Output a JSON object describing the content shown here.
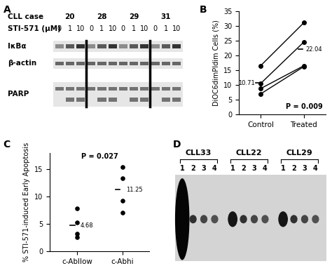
{
  "chart_data": [
    {
      "panel": "A",
      "type": "blot",
      "header": "CLL case",
      "dose_label": "STI-571 (µM)",
      "cases": [
        "20",
        "28",
        "29",
        "31"
      ],
      "doses": [
        "0",
        "1",
        "10"
      ],
      "rows": [
        "IκBα",
        "β-actin",
        "PARP"
      ]
    },
    {
      "panel": "B",
      "type": "line",
      "ylabel": "DiOC6dimPIdim Cells (%)",
      "categories": [
        "Control",
        "Treated"
      ],
      "series": [
        {
          "values": [
            16.5,
            31.0
          ]
        },
        {
          "values": [
            10.5,
            24.5
          ]
        },
        {
          "values": [
            8.8,
            16.5
          ]
        },
        {
          "values": [
            7.0,
            16.2
          ]
        }
      ],
      "color": "#000000",
      "marker": "o",
      "means": [
        10.71,
        22.04
      ],
      "annotation": "P = 0.009",
      "ylim": [
        0,
        35
      ],
      "yticks": [
        0,
        5,
        10,
        15,
        20,
        25,
        30,
        35
      ]
    },
    {
      "panel": "C",
      "type": "scatter",
      "ylabel": "% STI-571-induced Early Apoptosis",
      "categories": [
        "c-Abllow",
        "c-Abhi"
      ],
      "values": [
        [
          7.8,
          5.2,
          3.2,
          2.5
        ],
        [
          15.4,
          13.4,
          9.2,
          7.0
        ]
      ],
      "color": "#000000",
      "marker": "o",
      "means": [
        4.68,
        11.25
      ],
      "annotation": "P = 0.027",
      "ylim": [
        0,
        18
      ],
      "yticks": [
        0,
        5,
        10,
        15
      ]
    },
    {
      "panel": "D",
      "type": "autoradiograph",
      "samples": [
        "CLL33",
        "CLL22",
        "CLL29"
      ],
      "lanes": [
        "1",
        "2",
        "3",
        "4"
      ]
    }
  ]
}
